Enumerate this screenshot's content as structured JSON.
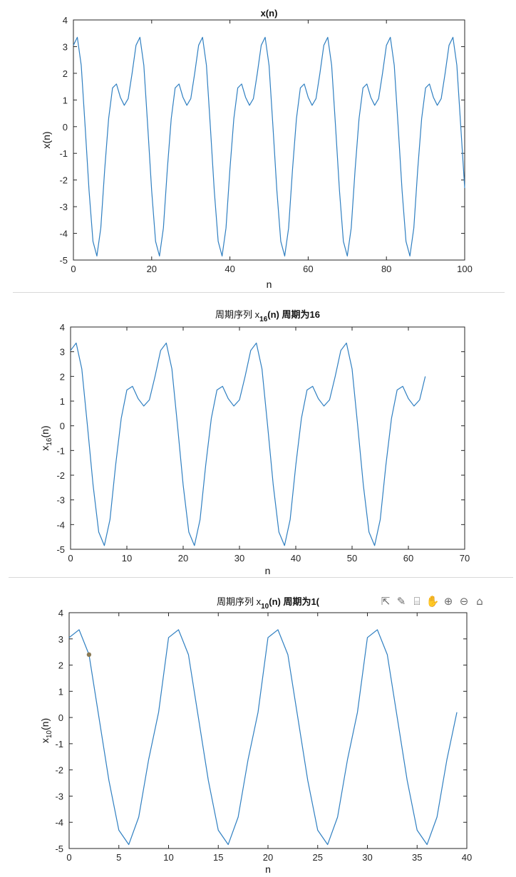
{
  "colors": {
    "line": "#2f7fc1",
    "axis": "#262626",
    "tick_label": "#262626",
    "datatip": "#8a7a55"
  },
  "toolbar": {
    "items": [
      {
        "name": "export-icon",
        "glyph": "⇱"
      },
      {
        "name": "brush-icon",
        "glyph": "✎"
      },
      {
        "name": "datatip-icon",
        "glyph": "⌸"
      },
      {
        "name": "pan-icon",
        "glyph": "✋"
      },
      {
        "name": "zoom-in-icon",
        "glyph": "⊕"
      },
      {
        "name": "zoom-out-icon",
        "glyph": "⊖"
      },
      {
        "name": "home-icon",
        "glyph": "⌂"
      }
    ]
  },
  "chart_data": [
    {
      "type": "line",
      "title": "x(n)",
      "xlabel": "n",
      "ylabel": "x(n)",
      "xlim": [
        0,
        100
      ],
      "ylim": [
        -5,
        4
      ],
      "xticks": [
        0,
        20,
        40,
        60,
        80,
        100
      ],
      "yticks": [
        -5,
        -4,
        -3,
        -2,
        -1,
        0,
        1,
        2,
        3,
        4
      ],
      "period": 16,
      "x_start": 0,
      "x_end": 100,
      "cycle_values": [
        3.05,
        3.35,
        2.3,
        0.0,
        -2.4,
        -4.3,
        -4.85,
        -3.8,
        -1.6,
        0.3,
        1.45,
        1.6,
        1.1,
        0.8,
        1.05,
        2.0
      ],
      "final_value": -2.3
    },
    {
      "type": "line",
      "title": "周期序列 x16(n) 周期为16",
      "title_parts": {
        "pre": "周期序列 x",
        "sub": "16",
        "post": "(n) 周期为16"
      },
      "xlabel": "n",
      "ylabel": "x16(n)",
      "ylabel_parts": {
        "pre": "x",
        "sub": "16",
        "post": "(n)"
      },
      "xlim": [
        0,
        70
      ],
      "ylim": [
        -5,
        4
      ],
      "xticks": [
        0,
        10,
        20,
        30,
        40,
        50,
        60,
        70
      ],
      "yticks": [
        -5,
        -4,
        -3,
        -2,
        -1,
        0,
        1,
        2,
        3,
        4
      ],
      "period": 16,
      "x_start": 0,
      "x_end": 63,
      "cycle_values": [
        3.05,
        3.35,
        2.3,
        0.0,
        -2.4,
        -4.3,
        -4.85,
        -3.8,
        -1.6,
        0.3,
        1.45,
        1.6,
        1.1,
        0.8,
        1.05,
        2.0
      ]
    },
    {
      "type": "line",
      "title": "周期序列 x10(n) 周期为1(",
      "title_parts": {
        "pre": "周期序列 x",
        "sub": "10",
        "post": "(n) 周期为1("
      },
      "xlabel": "n",
      "ylabel": "x10(n)",
      "ylabel_parts": {
        "pre": "x",
        "sub": "10",
        "post": "(n)"
      },
      "xlim": [
        0,
        40
      ],
      "ylim": [
        -5,
        4
      ],
      "xticks": [
        0,
        5,
        10,
        15,
        20,
        25,
        30,
        35,
        40
      ],
      "yticks": [
        -5,
        -4,
        -3,
        -2,
        -1,
        0,
        1,
        2,
        3,
        4
      ],
      "period": 10,
      "x_start": 0,
      "x_end": 39,
      "cycle_values": [
        3.05,
        3.35,
        2.4,
        0.0,
        -2.4,
        -4.3,
        -4.85,
        -3.8,
        -1.6,
        0.2
      ],
      "datatip": {
        "x": 2,
        "y": 2.4
      }
    }
  ]
}
